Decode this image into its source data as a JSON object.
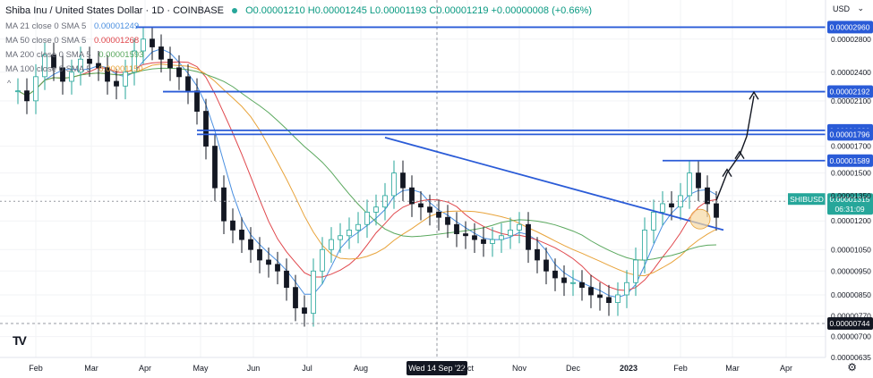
{
  "header": {
    "title": "Shiba Inu / United States Dollar · 1D · COINBASE",
    "ohlc": "O0.00001210 H0.00001245 L0.00001193 C0.00001219 +0.00000008 (+0.66%)"
  },
  "indicators": [
    {
      "label": "MA 21 close 0 SMA 5",
      "value": "0.00001249",
      "color": "#4a8fe0"
    },
    {
      "label": "MA 50 close 0 SMA 5",
      "value": "0.00001268",
      "color": "#e0474c"
    },
    {
      "label": "MA 200 close 0 SMA 5",
      "value": "0.00001593",
      "color": "#5aa85e"
    },
    {
      "label": "MA 100 close 0 SMA 5",
      "value": "0.00001150",
      "color": "#e8a33a"
    }
  ],
  "currency_menu": "USD",
  "collapse_glyph": "^",
  "logo_text": "TV",
  "settings_icon": "gear-icon",
  "colors": {
    "up": "#26a69a",
    "down": "#131722",
    "level": "#2a5bd7",
    "ma21": "#4a8fe0",
    "ma50": "#e0474c",
    "ma100": "#e8a33a",
    "ma200": "#5aa85e",
    "highlight": "#f7d9a3"
  },
  "chart_data": {
    "type": "candlestick",
    "symbol": "SHIBUSD",
    "ylim": [
      6.35e-06,
      3.36e-05
    ],
    "x_ticks": [
      "Feb",
      "Mar",
      "Apr",
      "May",
      "Jun",
      "Jul",
      "Aug",
      "Wed 14 Sep '22",
      "Oct",
      "Nov",
      "Dec",
      "2023",
      "Feb",
      "Mar",
      "Apr"
    ],
    "y_ticks": [
      "0.00002800",
      "0.00002400",
      "0.00002100",
      "0.00001700",
      "0.00001500",
      "0.00001350",
      "0.00001200",
      "0.00001050",
      "0.00000950",
      "0.00000850",
      "0.00000770",
      "0.00000700",
      "0.00000635"
    ],
    "levels": [
      {
        "value": 2.96e-05,
        "label": "0.00002960"
      },
      {
        "value": 2.192e-05,
        "label": "0.00002192"
      },
      {
        "value": 1.83e-05,
        "label": "0.00001830"
      },
      {
        "value": 1.796e-05,
        "label": "0.00001796"
      },
      {
        "value": 1.589e-05,
        "label": "0.00001589"
      },
      {
        "value": 7.44e-06,
        "label": "0.00000744"
      }
    ],
    "last_price": {
      "symbol": "SHIBUSD",
      "value": "0.00001315",
      "countdown": "06:31:09"
    },
    "crosshair_date": "Wed 14 Sep '22",
    "trendline": {
      "from": [
        "Aug 14 '22",
        1.77e-05
      ],
      "to": [
        "Feb 18 '23",
        1.15e-05
      ]
    },
    "arrows_note": "projected moves toward 0.00001589, 0.00001796 and 0.00002192",
    "series_close": [
      2.2e-05,
      2.1e-05,
      2.35e-05,
      2.6e-05,
      2.45e-05,
      2.3e-05,
      2.4e-05,
      2.55e-05,
      2.5e-05,
      2.45e-05,
      2.3e-05,
      2.25e-05,
      2.4e-05,
      2.65e-05,
      2.8e-05,
      2.7e-05,
      2.55e-05,
      2.45e-05,
      2.35e-05,
      2.2e-05,
      2e-05,
      1.7e-05,
      1.4e-05,
      1.2e-05,
      1.15e-05,
      1.1e-05,
      1.05e-05,
      1e-05,
      9.8e-06,
      9.5e-06,
      8.8e-06,
      8e-06,
      7.8e-06,
      9.5e-06,
      1.05e-05,
      1.1e-05,
      1.12e-05,
      1.15e-05,
      1.18e-05,
      1.25e-05,
      1.28e-05,
      1.35e-05,
      1.5e-05,
      1.4e-05,
      1.3e-05,
      1.28e-05,
      1.25e-05,
      1.22e-05,
      1.18e-05,
      1.13e-05,
      1.12e-05,
      1.1e-05,
      1.08e-05,
      1.1e-05,
      1.12e-05,
      1.15e-05,
      1.18e-05,
      1.05e-05,
      1e-05,
      9.5e-06,
      9.2e-06,
      9e-06,
      9e-06,
      8.8e-06,
      8.5e-06,
      8.4e-06,
      8.2e-06,
      8.5e-06,
      9e-06,
      1e-05,
      1.15e-05,
      1.25e-05,
      1.3e-05,
      1.28e-05,
      1.35e-05,
      1.5e-05,
      1.4e-05,
      1.3e-05,
      1.22e-05
    ]
  }
}
